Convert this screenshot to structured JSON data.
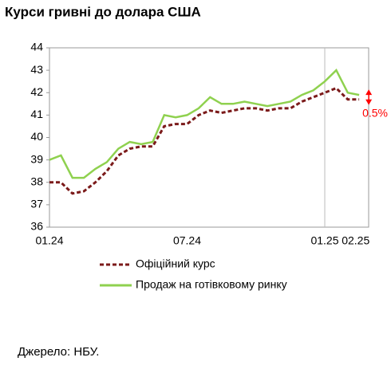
{
  "chart_data": {
    "type": "line",
    "title": "Курси гривні до долара США",
    "categories": [
      "01.24",
      null,
      null,
      null,
      null,
      null,
      null,
      null,
      null,
      null,
      null,
      null,
      "07.24",
      null,
      null,
      null,
      null,
      null,
      null,
      null,
      null,
      null,
      null,
      null,
      "01.25",
      null,
      "02.25",
      null
    ],
    "series": [
      {
        "name": "Офіційний курс",
        "color": "#7b1a1a",
        "dash": true,
        "values": [
          38.0,
          38.0,
          37.5,
          37.6,
          38.0,
          38.5,
          39.2,
          39.5,
          39.6,
          39.6,
          40.5,
          40.6,
          40.6,
          41.0,
          41.2,
          41.1,
          41.2,
          41.3,
          41.3,
          41.2,
          41.3,
          41.3,
          41.6,
          41.8,
          42.0,
          42.2,
          41.7,
          41.7
        ]
      },
      {
        "name": "Продаж на готівковому ринку",
        "color": "#8fd14f",
        "dash": false,
        "values": [
          39.0,
          39.2,
          38.2,
          38.2,
          38.6,
          38.9,
          39.5,
          39.8,
          39.7,
          39.8,
          41.0,
          40.9,
          41.0,
          41.3,
          41.8,
          41.5,
          41.5,
          41.6,
          41.5,
          41.4,
          41.5,
          41.6,
          41.9,
          42.1,
          42.5,
          43.0,
          42.0,
          41.9
        ]
      }
    ],
    "ylim": [
      36,
      44
    ],
    "yticks": [
      36,
      37,
      38,
      39,
      40,
      41,
      42,
      43,
      44
    ],
    "annotation": "0.5%",
    "annotation_color": "#ff0000",
    "source": "Джерело: НБУ."
  }
}
